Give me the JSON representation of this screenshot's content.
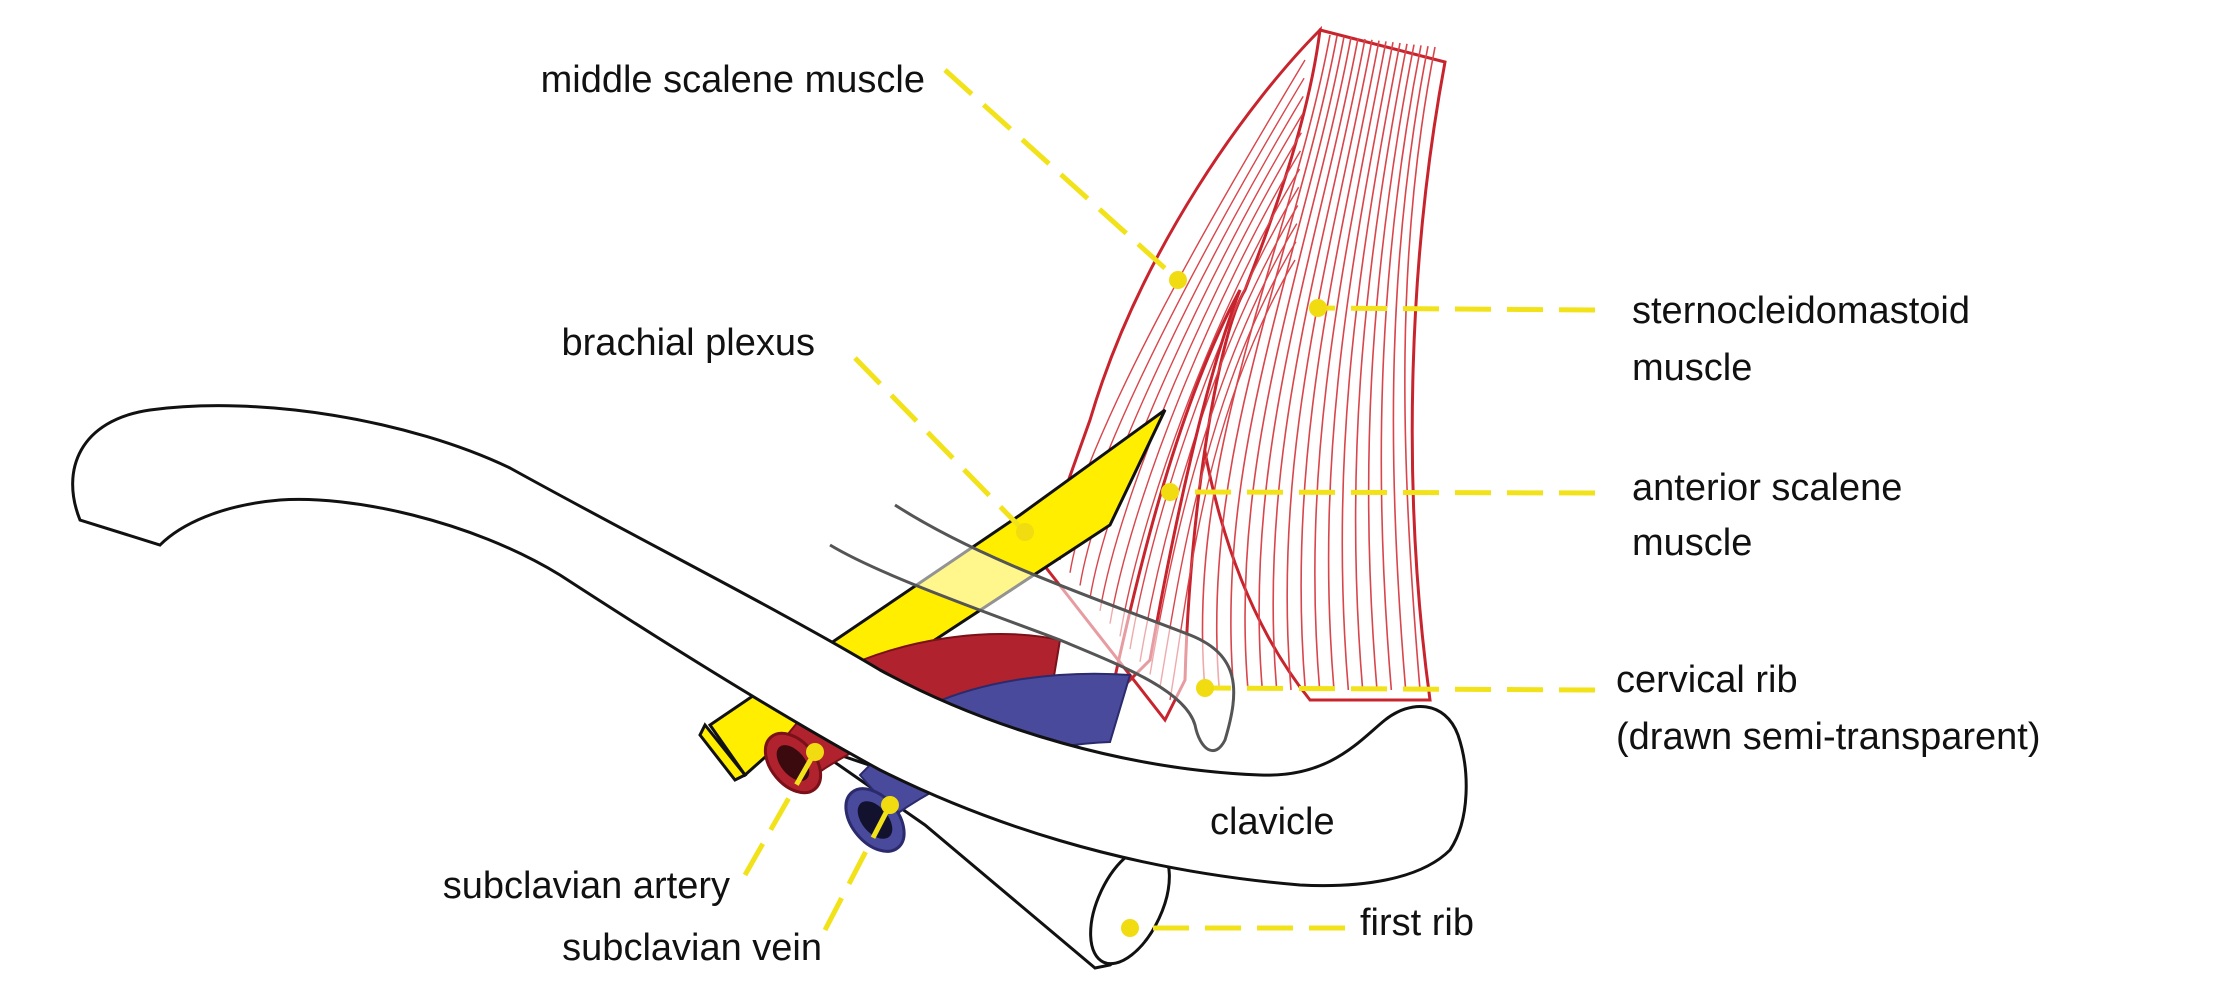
{
  "labels": {
    "middle_scalene": [
      "middle scalene muscle"
    ],
    "brachial_plexus": [
      "brachial plexus"
    ],
    "sternocleidomastoid": [
      "sternocleidomastoid",
      "muscle"
    ],
    "anterior_scalene": [
      "anterior scalene",
      "muscle"
    ],
    "cervical_rib": [
      "cervical rib",
      "(drawn semi-transparent)"
    ],
    "clavicle": [
      "clavicle"
    ],
    "subclavian_artery": [
      "subclavian artery"
    ],
    "subclavian_vein": [
      "subclavian vein"
    ],
    "first_rib": [
      "first rib"
    ]
  },
  "colors": {
    "leader": "#f2e21a",
    "leader_dot": "#f0dc10",
    "muscle": "#c8242e",
    "muscle_fiber": "#d8454b",
    "plexus": "#ffee00",
    "artery": "#b0222e",
    "vein": "#4a4a9c",
    "bone_outline": "#111111",
    "bone_fill": "#ffffff"
  }
}
